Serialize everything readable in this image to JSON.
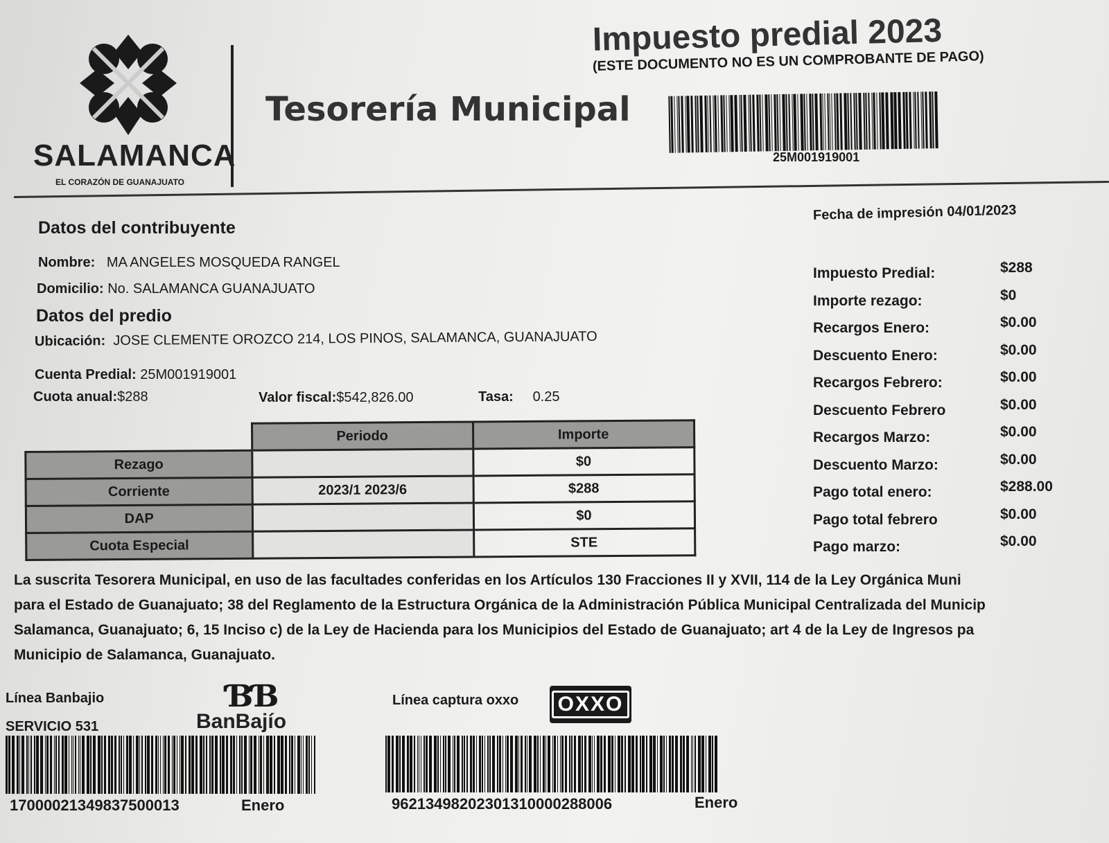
{
  "header": {
    "logo_name": "SALAMANCA",
    "logo_tagline": "EL CORAZÓN DE GUANAJUATO",
    "department": "Tesorería Municipal",
    "title": "Impuesto predial 2023",
    "subtitle": "(ESTE DOCUMENTO NO ES UN COMPROBANTE DE PAGO)",
    "barcode_number": "25M001919001"
  },
  "print_date": {
    "label": "Fecha de impresión",
    "value": "04/01/2023"
  },
  "contribuyente": {
    "heading": "Datos del contribuyente",
    "nombre_label": "Nombre:",
    "nombre": "MA ANGELES MOSQUEDA RANGEL",
    "domicilio_label": "Domicilio:",
    "domicilio": "No. SALAMANCA GUANAJUATO"
  },
  "predio": {
    "heading": "Datos del predio",
    "ubicacion_label": "Ubicación:",
    "ubicacion": "JOSE CLEMENTE OROZCO 214, LOS PINOS, SALAMANCA, GUANAJUATO",
    "cuenta_label": "Cuenta Predial:",
    "cuenta": "25M001919001",
    "cuota_label": "Cuota anual:",
    "cuota": "$288",
    "valor_label": "Valor fiscal:",
    "valor": "$542,826.00",
    "tasa_label": "Tasa:",
    "tasa": "0.25"
  },
  "table": {
    "headers": [
      "",
      "Periodo",
      "Importe"
    ],
    "rows": [
      {
        "concepto": "Rezago",
        "periodo": "",
        "importe": "$0"
      },
      {
        "concepto": "Corriente",
        "periodo": "2023/1 2023/6",
        "importe": "$288"
      },
      {
        "concepto": "DAP",
        "periodo": "",
        "importe": "$0"
      },
      {
        "concepto": "Cuota Especial",
        "periodo": "",
        "importe": "STE"
      }
    ]
  },
  "summary": [
    {
      "label": "Impuesto Predial:",
      "value": "$288"
    },
    {
      "label": "Importe rezago:",
      "value": "$0"
    },
    {
      "label": "Recargos Enero:",
      "value": "$0.00"
    },
    {
      "label": "Descuento Enero:",
      "value": "$0.00"
    },
    {
      "label": "Recargos Febrero:",
      "value": "$0.00"
    },
    {
      "label": "Descuento Febrero",
      "value": "$0.00"
    },
    {
      "label": "Recargos Marzo:",
      "value": "$0.00"
    },
    {
      "label": "Descuento Marzo:",
      "value": "$0.00"
    },
    {
      "label": "Pago total enero:",
      "value": "$288.00"
    },
    {
      "label": "Pago total febrero",
      "value": "$0.00"
    },
    {
      "label": "Pago marzo:",
      "value": "$0.00"
    }
  ],
  "legal": [
    "La suscrita Tesorera Municipal, en uso de las facultades conferidas en los Artículos 130 Fracciones II y XVII, 114 de la Ley Orgánica Muni",
    "para el Estado de Guanajuato; 38 del Reglamento de la Estructura Orgánica de la Administración Pública Municipal Centralizada del Municip",
    "Salamanca, Guanajuato; 6, 15 Inciso c) de la Ley de Hacienda para los Municipios del Estado de Guanajuato; art 4 de la Ley de Ingresos pa",
    "Municipio de Salamanca, Guanajuato."
  ],
  "payment": {
    "banbajio": {
      "label": "Línea Banbajio",
      "service": "SERVICIO 531",
      "logo": "BanBajío",
      "number": "17000021349837500013",
      "month": "Enero"
    },
    "oxxo": {
      "label": "Línea captura oxxo",
      "logo": "OXXO",
      "number": "96213498202301310000288006",
      "month": "Enero"
    }
  }
}
